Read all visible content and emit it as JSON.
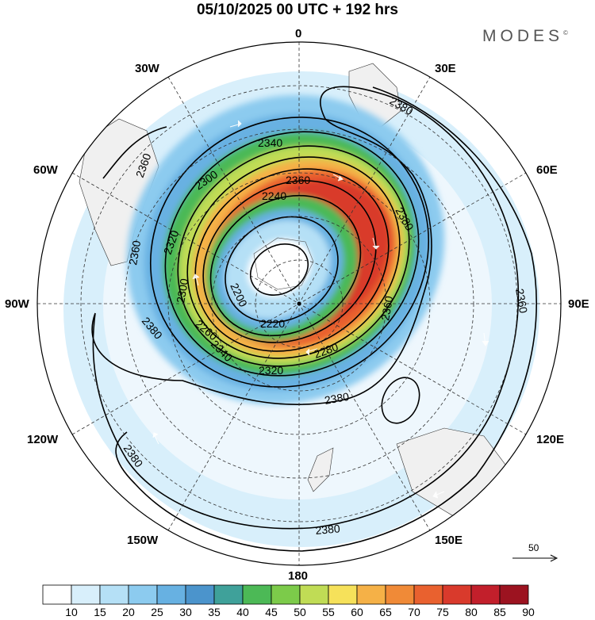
{
  "title": "05/10/2025  00 UTC  + 192 hrs",
  "brand": "MODES",
  "brand_mark": "©",
  "longitude_labels": {
    "n": "0",
    "e30": "30E",
    "e60": "60E",
    "e90": "90E",
    "e120": "120E",
    "e150": "150E",
    "s": "180",
    "w150": "150W",
    "w120": "120W",
    "w90": "90W",
    "w60": "60W",
    "w30": "30W"
  },
  "contour_labels": [
    "2380",
    "2360",
    "2360",
    "2360",
    "2340",
    "2300",
    "2240",
    "2320",
    "2360",
    "2200",
    "2300",
    "2220",
    "2280",
    "2320",
    "2260",
    "2380",
    "2340",
    "2380",
    "2380",
    "2360",
    "2380",
    "2380"
  ],
  "reference_vector_label": "50",
  "colorbar": {
    "levels": [
      "10",
      "15",
      "20",
      "25",
      "30",
      "35",
      "40",
      "45",
      "50",
      "55",
      "60",
      "65",
      "70",
      "75",
      "80",
      "85",
      "90"
    ],
    "colors": [
      "#ffffff",
      "#d8effb",
      "#b5e0f6",
      "#8ccbef",
      "#67b1e2",
      "#4b94cc",
      "#3fa19a",
      "#4cb956",
      "#7ccb4a",
      "#c0dc55",
      "#f6e15a",
      "#f5b147",
      "#f08a37",
      "#e9612f",
      "#d93a2c",
      "#c21f2b",
      "#9c1320"
    ]
  }
}
